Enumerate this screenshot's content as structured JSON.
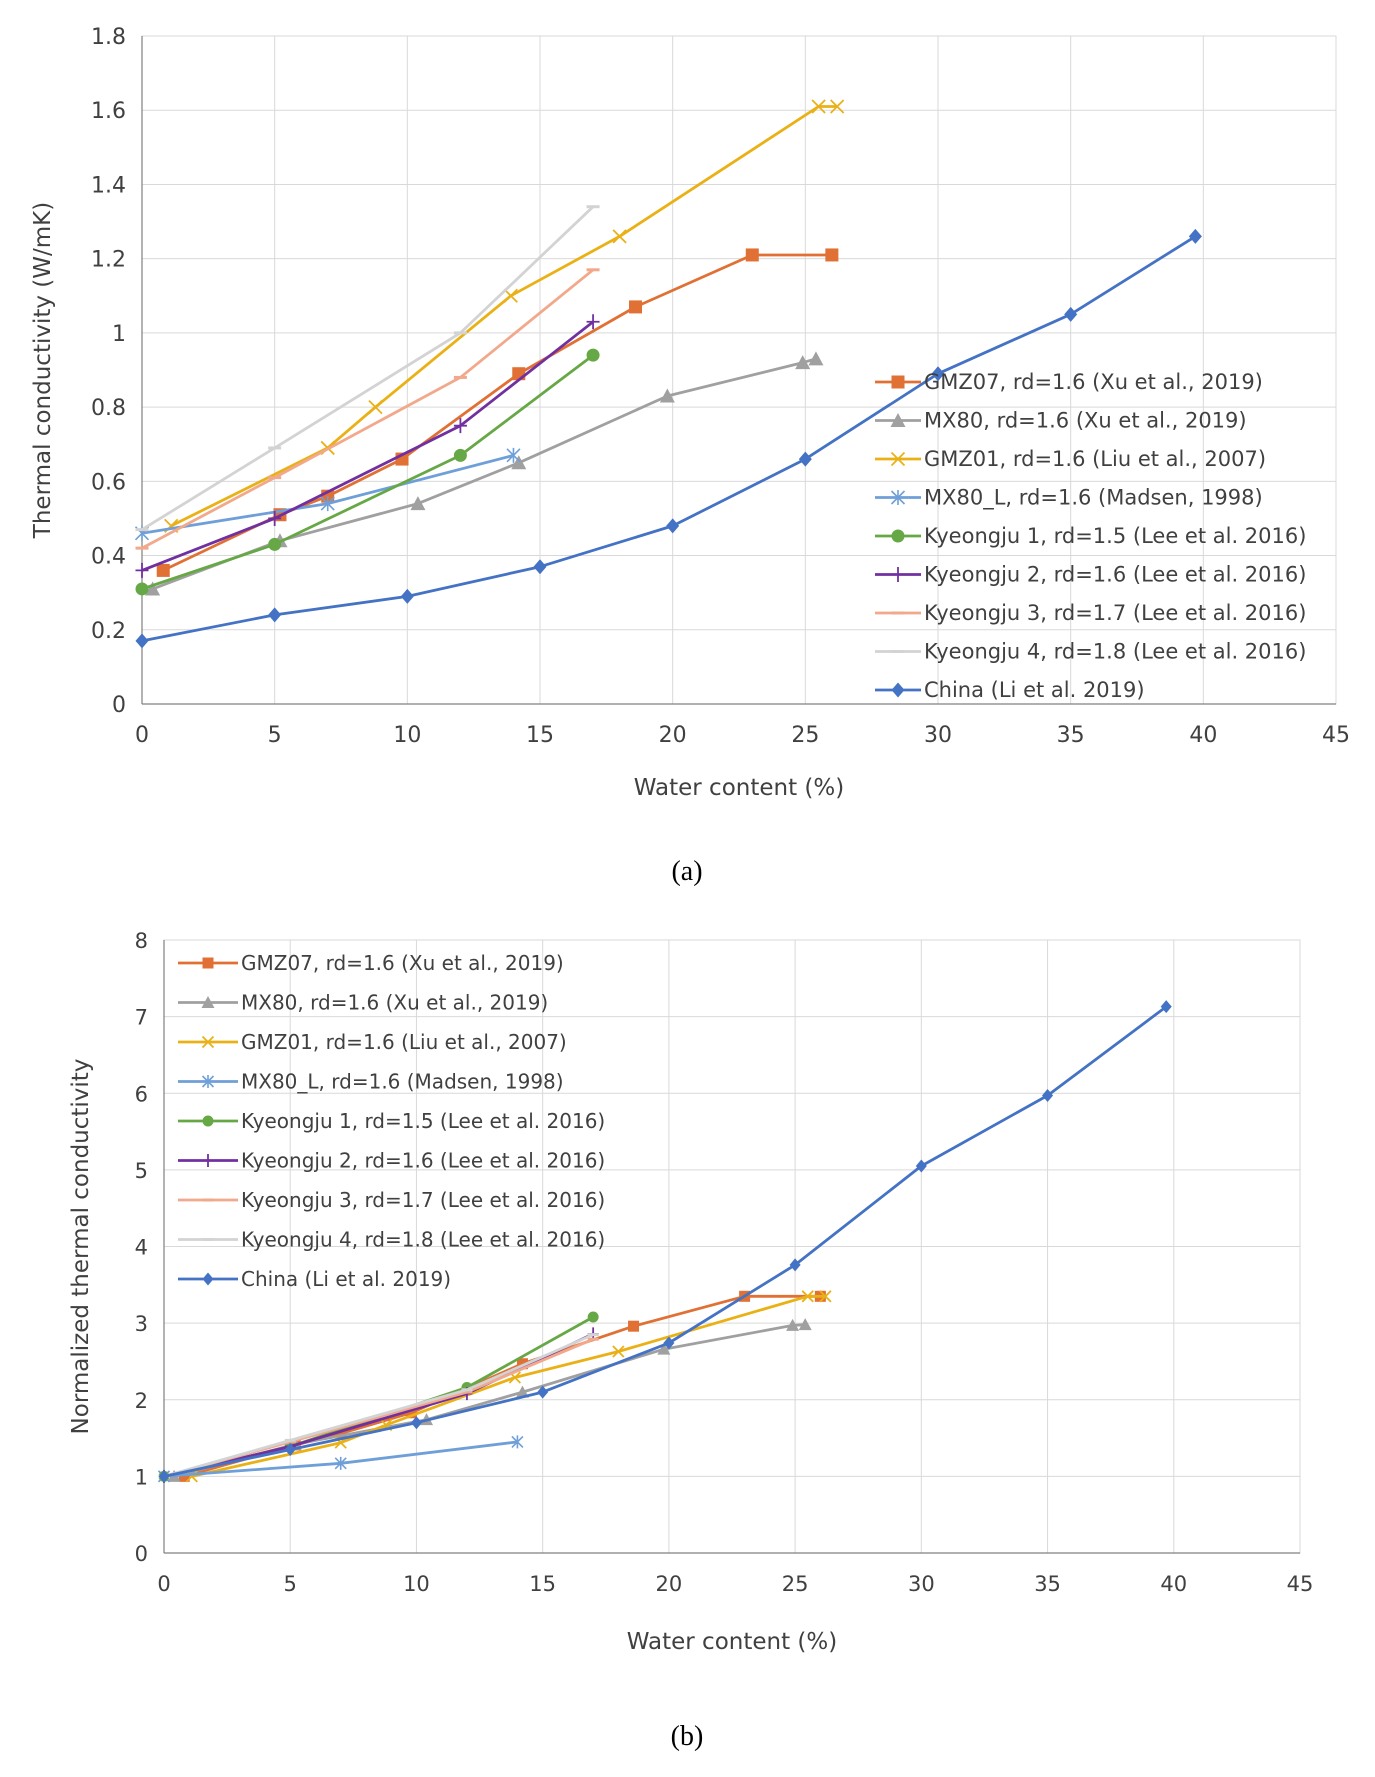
{
  "chart_data": [
    {
      "type": "line",
      "caption": "(a)",
      "title": "",
      "xlabel": "Water content (%)",
      "ylabel": "Thermal conductivity (W/mK)",
      "xlim": [
        0,
        45
      ],
      "ylim": [
        0,
        1.8
      ],
      "xticks": [
        0,
        5,
        10,
        15,
        20,
        25,
        30,
        35,
        40,
        45
      ],
      "yticks": [
        0,
        0.2,
        0.4,
        0.6,
        0.8,
        1,
        1.2,
        1.4,
        1.6,
        1.8
      ],
      "xtick_labels": [
        "0",
        "5",
        "10",
        "15",
        "20",
        "25",
        "30",
        "35",
        "40",
        "45"
      ],
      "ytick_labels": [
        "0",
        "0.2",
        "0.4",
        "0.6",
        "0.8",
        "1",
        "1.2",
        "1.4",
        "1.6",
        "1.8"
      ],
      "grid": true,
      "legend_position": "right",
      "series": [
        {
          "name": "GMZ07, rd=1.6 (Xu et al., 2019)",
          "color": "#e07034",
          "marker": "square",
          "x": [
            0.8,
            5.2,
            7,
            9.8,
            14.2,
            18.6,
            23,
            26
          ],
          "y": [
            0.36,
            0.51,
            0.56,
            0.66,
            0.89,
            1.07,
            1.21,
            1.21
          ]
        },
        {
          "name": "MX80, rd=1.6  (Xu et al., 2019)",
          "color": "#a0a0a0",
          "marker": "triangle",
          "x": [
            0.4,
            5.2,
            10.4,
            14.2,
            19.8,
            24.9,
            25.4
          ],
          "y": [
            0.31,
            0.44,
            0.54,
            0.65,
            0.83,
            0.92,
            0.93
          ]
        },
        {
          "name": "GMZ01, rd=1.6 (Liu et al., 2007)",
          "color": "#eab117",
          "marker": "x",
          "x": [
            1.1,
            7,
            8.8,
            13.9,
            18,
            25.5,
            26.2
          ],
          "y": [
            0.48,
            0.69,
            0.8,
            1.1,
            1.26,
            1.61,
            1.61
          ]
        },
        {
          "name": "MX80_L, rd=1.6 (Madsen, 1998)",
          "color": "#6f9fd8",
          "marker": "asterisk",
          "x": [
            0,
            7,
            14
          ],
          "y": [
            0.46,
            0.54,
            0.67
          ]
        },
        {
          "name": "Kyeongju 1, rd=1.5 (Lee et al. 2016)",
          "color": "#67a846",
          "marker": "circle",
          "x": [
            0,
            5,
            12,
            17
          ],
          "y": [
            0.31,
            0.43,
            0.67,
            0.94
          ]
        },
        {
          "name": "Kyeongju 2, rd=1.6 (Lee et al. 2016)",
          "color": "#7130a0",
          "marker": "plus",
          "x": [
            0,
            5,
            12,
            17
          ],
          "y": [
            0.36,
            0.5,
            0.75,
            1.03
          ]
        },
        {
          "name": "Kyeongju 3, rd=1.7 (Lee et al. 2016)",
          "color": "#f2a88a",
          "marker": "dash",
          "x": [
            0,
            5,
            12,
            17
          ],
          "y": [
            0.42,
            0.61,
            0.88,
            1.17
          ]
        },
        {
          "name": "Kyeongju 4, rd=1.8 (Lee et al. 2016)",
          "color": "#d3d3d3",
          "marker": "dash",
          "x": [
            0,
            5,
            12,
            17
          ],
          "y": [
            0.47,
            0.69,
            1,
            1.34
          ]
        },
        {
          "name": "China (Li et al. 2019)",
          "color": "#4472c4",
          "marker": "diamond",
          "x": [
            0,
            5,
            10,
            15,
            20,
            25,
            30,
            35,
            39.7
          ],
          "y": [
            0.17,
            0.24,
            0.29,
            0.37,
            0.48,
            0.66,
            0.89,
            1.05,
            1.26
          ]
        }
      ]
    },
    {
      "type": "line",
      "caption": "(b)",
      "title": "",
      "xlabel": "Water content (%)",
      "ylabel": "Normalized thermal conductivity",
      "xlim": [
        0,
        45
      ],
      "ylim": [
        0,
        8
      ],
      "xticks": [
        0,
        5,
        10,
        15,
        20,
        25,
        30,
        35,
        40,
        45
      ],
      "yticks": [
        0,
        1,
        2,
        3,
        4,
        5,
        6,
        7,
        8
      ],
      "xtick_labels": [
        "0",
        "5",
        "10",
        "15",
        "20",
        "25",
        "30",
        "35",
        "40",
        "45"
      ],
      "ytick_labels": [
        "0",
        "1",
        "2",
        "3",
        "4",
        "5",
        "6",
        "7",
        "8"
      ],
      "grid": true,
      "legend_position": "top-left",
      "series": [
        {
          "name": "GMZ07, rd=1.6 (Xu et al., 2019)",
          "color": "#e07034",
          "marker": "square",
          "x": [
            0.8,
            5.2,
            7,
            9.8,
            14.2,
            18.6,
            23,
            26
          ],
          "y": [
            1,
            1.41,
            1.56,
            1.83,
            2.47,
            2.96,
            3.35,
            3.35
          ]
        },
        {
          "name": "MX80, rd=1.6  (Xu et al., 2019)",
          "color": "#a0a0a0",
          "marker": "triangle",
          "x": [
            0.4,
            5.2,
            10.4,
            14.2,
            19.8,
            24.9,
            25.4
          ],
          "y": [
            1,
            1.42,
            1.74,
            2.1,
            2.66,
            2.97,
            2.98
          ]
        },
        {
          "name": "GMZ01, rd=1.6 (Liu et al., 2007)",
          "color": "#eab117",
          "marker": "x",
          "x": [
            1.1,
            7,
            8.8,
            13.9,
            18,
            25.5,
            26.2
          ],
          "y": [
            1,
            1.44,
            1.67,
            2.29,
            2.63,
            3.35,
            3.35
          ]
        },
        {
          "name": "MX80_L, rd=1.6 (Madsen, 1998)",
          "color": "#6f9fd8",
          "marker": "asterisk",
          "x": [
            0,
            7,
            14
          ],
          "y": [
            1,
            1.17,
            1.45
          ]
        },
        {
          "name": "Kyeongju 1, rd=1.5 (Lee et al. 2016)",
          "color": "#67a846",
          "marker": "circle",
          "x": [
            0,
            5,
            12,
            17
          ],
          "y": [
            1,
            1.39,
            2.16,
            3.08
          ]
        },
        {
          "name": "Kyeongju 2, rd=1.6 (Lee et al. 2016)",
          "color": "#7130a0",
          "marker": "plus",
          "x": [
            0,
            5,
            12,
            17
          ],
          "y": [
            1,
            1.39,
            2.08,
            2.86
          ]
        },
        {
          "name": "Kyeongju 3, rd=1.7 (Lee et al. 2016)",
          "color": "#f2a88a",
          "marker": "dash",
          "x": [
            0,
            5,
            12,
            17
          ],
          "y": [
            1,
            1.45,
            2.1,
            2.79
          ]
        },
        {
          "name": "Kyeongju 4, rd=1.8 (Lee et al. 2016)",
          "color": "#d3d3d3",
          "marker": "dash",
          "x": [
            0,
            5,
            12,
            17
          ],
          "y": [
            1,
            1.47,
            2.13,
            2.85
          ]
        },
        {
          "name": "China (Li et al. 2019)",
          "color": "#4472c4",
          "marker": "diamond",
          "x": [
            0,
            5,
            10,
            15,
            20,
            25,
            30,
            35,
            39.7
          ],
          "y": [
            1,
            1.35,
            1.7,
            2.1,
            2.74,
            3.76,
            5.05,
            5.97,
            7.13
          ]
        }
      ]
    }
  ]
}
